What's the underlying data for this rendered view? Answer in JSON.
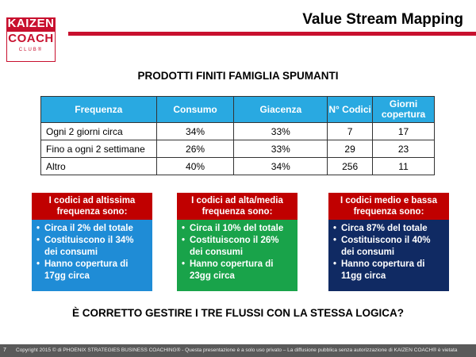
{
  "logo": {
    "line1": "KAIZEN",
    "line2": "COACH",
    "line3": "CLUB®"
  },
  "slide_title": "Value Stream Mapping",
  "subtitle": "PRODOTTI FINITI FAMIGLIA SPUMANTI",
  "table": {
    "headers": [
      "Frequenza",
      "Consumo",
      "Giacenza",
      "N° Codici",
      "Giorni copertura"
    ],
    "rows": [
      [
        "Ogni 2 giorni circa",
        "34%",
        "33%",
        "7",
        "17"
      ],
      [
        "Fino a ogni 2 settimane",
        "26%",
        "33%",
        "29",
        "23"
      ],
      [
        "Altro",
        "40%",
        "34%",
        "256",
        "11"
      ]
    ]
  },
  "callouts": [
    {
      "head": "I codici ad altissima frequenza sono:",
      "items": [
        "Circa il 2% del totale",
        "Costituiscono il 34% dei consumi",
        "Hanno copertura di 17gg circa"
      ]
    },
    {
      "head": "I codici ad alta/media frequenza sono:",
      "items": [
        "Circa il 10% del totale",
        "Costituiscono il 26% dei consumi",
        "Hanno copertura di 23gg circa"
      ]
    },
    {
      "head": "I codici medio e bassa frequenza sono:",
      "items": [
        "Circa 87% del totale",
        "Costituiscono il 40% dei consumi",
        "Hanno copertura di 11gg circa"
      ]
    }
  ],
  "question": "È CORRETTO GESTIRE I TRE FLUSSI CON LA STESSA LOGICA?",
  "footer": "Copyright 2015 © di PHOENIX STRATEGIES BUSINESS COACHING® - Questa presentazione è a solo uso privato – La diffusione pubblica senza autorizzazione di KAIZEN COACH® è vietata",
  "page_number": "7",
  "colors": {
    "brand_red": "#c8102e",
    "header_blue": "#29a9e1",
    "box_blue": "#1f8cd6",
    "box_green": "#19a34a",
    "box_navy": "#102a63",
    "box_head_red": "#c00000"
  }
}
